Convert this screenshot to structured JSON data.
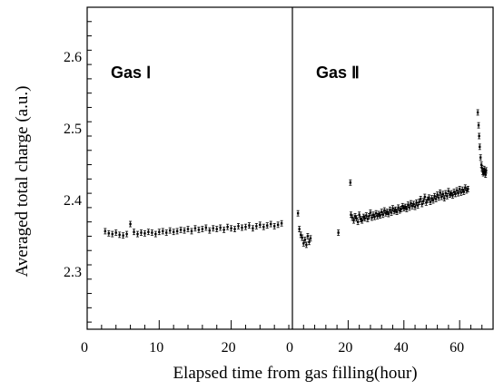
{
  "chart_data": {
    "type": "scatter",
    "ylabel": "Averaged total charge (a.u.)",
    "xlabel": "Elapsed time from gas filling(hour)",
    "ylim": [
      2.22,
      2.67
    ],
    "yticks": [
      2.3,
      2.4,
      2.5,
      2.6
    ],
    "ytick_labels": [
      "2.3",
      "2.4",
      "2.5",
      "2.6"
    ],
    "grid": false,
    "legend": "none",
    "panels": [
      {
        "label": "Gas Ⅰ",
        "xlim": [
          0,
          28.5
        ],
        "xticks": [
          0,
          10,
          20
        ],
        "xtick_labels": [
          "0",
          "10",
          "20"
        ],
        "series": [
          {
            "x": [
              2.5,
              3.0,
              3.5,
              4.0,
              4.5,
              5.0,
              5.5,
              6.0,
              6.5,
              7.0,
              7.5,
              8.0,
              8.5,
              9.0,
              9.5,
              10.0,
              10.5,
              11.0,
              11.5,
              12.0,
              12.5,
              13.0,
              13.5,
              14.0,
              14.5,
              15.0,
              15.5,
              16.0,
              16.5,
              17.0,
              17.5,
              18.0,
              18.5,
              19.0,
              19.5,
              20.0,
              20.5,
              21.0,
              21.5,
              22.0,
              22.5,
              23.0,
              23.5,
              24.0,
              24.5,
              25.0,
              25.5,
              26.0,
              26.5,
              27.0
            ],
            "y": [
              2.357,
              2.354,
              2.353,
              2.355,
              2.352,
              2.351,
              2.353,
              2.367,
              2.356,
              2.353,
              2.355,
              2.354,
              2.356,
              2.355,
              2.353,
              2.356,
              2.357,
              2.355,
              2.358,
              2.356,
              2.357,
              2.359,
              2.358,
              2.36,
              2.357,
              2.361,
              2.359,
              2.36,
              2.362,
              2.358,
              2.361,
              2.36,
              2.362,
              2.359,
              2.363,
              2.361,
              2.36,
              2.364,
              2.362,
              2.363,
              2.365,
              2.361,
              2.364,
              2.366,
              2.363,
              2.365,
              2.367,
              2.364,
              2.366,
              2.368
            ]
          }
        ]
      },
      {
        "label": "Gas Ⅱ",
        "xlim": [
          0,
          72
        ],
        "xticks": [
          0,
          20,
          40,
          60
        ],
        "xtick_labels": [
          "0",
          "20",
          "40",
          "60"
        ],
        "series": [
          {
            "x": [
              2.0,
              2.5,
              3.0,
              3.5,
              4.0,
              4.5,
              5.0,
              5.5,
              6.0,
              6.5,
              16.5,
              20.8,
              21.0,
              21.5,
              22.0,
              22.5,
              23.0,
              23.5,
              24.0,
              24.5,
              25.0,
              25.5,
              26.0,
              26.5,
              27.0,
              27.5,
              28.0,
              28.5,
              29.0,
              29.5,
              30.0,
              30.5,
              31.0,
              31.5,
              32.0,
              32.5,
              33.0,
              33.5,
              34.0,
              34.5,
              35.0,
              35.5,
              36.0,
              36.5,
              37.0,
              37.5,
              38.0,
              38.5,
              39.0,
              39.5,
              40.0,
              40.5,
              41.0,
              41.5,
              42.0,
              42.5,
              43.0,
              43.5,
              44.0,
              44.5,
              45.0,
              45.5,
              46.0,
              46.5,
              47.0,
              47.5,
              48.0,
              48.5,
              49.0,
              49.5,
              50.0,
              50.5,
              51.0,
              51.5,
              52.0,
              52.5,
              53.0,
              53.5,
              54.0,
              54.5,
              55.0,
              55.5,
              56.0,
              56.5,
              57.0,
              57.5,
              58.0,
              58.5,
              59.0,
              59.5,
              60.0,
              60.5,
              61.0,
              61.5,
              62.0,
              62.5,
              63.0,
              66.5,
              66.8,
              67.0,
              67.2,
              67.5,
              67.8,
              68.0,
              68.3,
              68.5,
              68.8,
              69.0,
              69.3,
              69.5
            ],
            "y": [
              2.382,
              2.36,
              2.352,
              2.348,
              2.34,
              2.345,
              2.338,
              2.35,
              2.342,
              2.347,
              2.355,
              2.425,
              2.38,
              2.376,
              2.372,
              2.378,
              2.375,
              2.37,
              2.38,
              2.374,
              2.372,
              2.377,
              2.375,
              2.379,
              2.374,
              2.378,
              2.383,
              2.376,
              2.38,
              2.377,
              2.382,
              2.378,
              2.381,
              2.379,
              2.384,
              2.38,
              2.386,
              2.382,
              2.384,
              2.381,
              2.387,
              2.383,
              2.389,
              2.385,
              2.387,
              2.384,
              2.39,
              2.386,
              2.388,
              2.392,
              2.389,
              2.391,
              2.388,
              2.394,
              2.39,
              2.396,
              2.392,
              2.395,
              2.391,
              2.397,
              2.393,
              2.398,
              2.402,
              2.395,
              2.399,
              2.405,
              2.397,
              2.401,
              2.404,
              2.398,
              2.403,
              2.4,
              2.406,
              2.402,
              2.408,
              2.404,
              2.411,
              2.405,
              2.409,
              2.403,
              2.41,
              2.406,
              2.413,
              2.408,
              2.41,
              2.407,
              2.412,
              2.409,
              2.414,
              2.41,
              2.416,
              2.411,
              2.415,
              2.412,
              2.418,
              2.414,
              2.416,
              2.523,
              2.505,
              2.49,
              2.475,
              2.46,
              2.45,
              2.445,
              2.44,
              2.438,
              2.444,
              2.44,
              2.436,
              2.442
            ]
          }
        ]
      }
    ]
  }
}
